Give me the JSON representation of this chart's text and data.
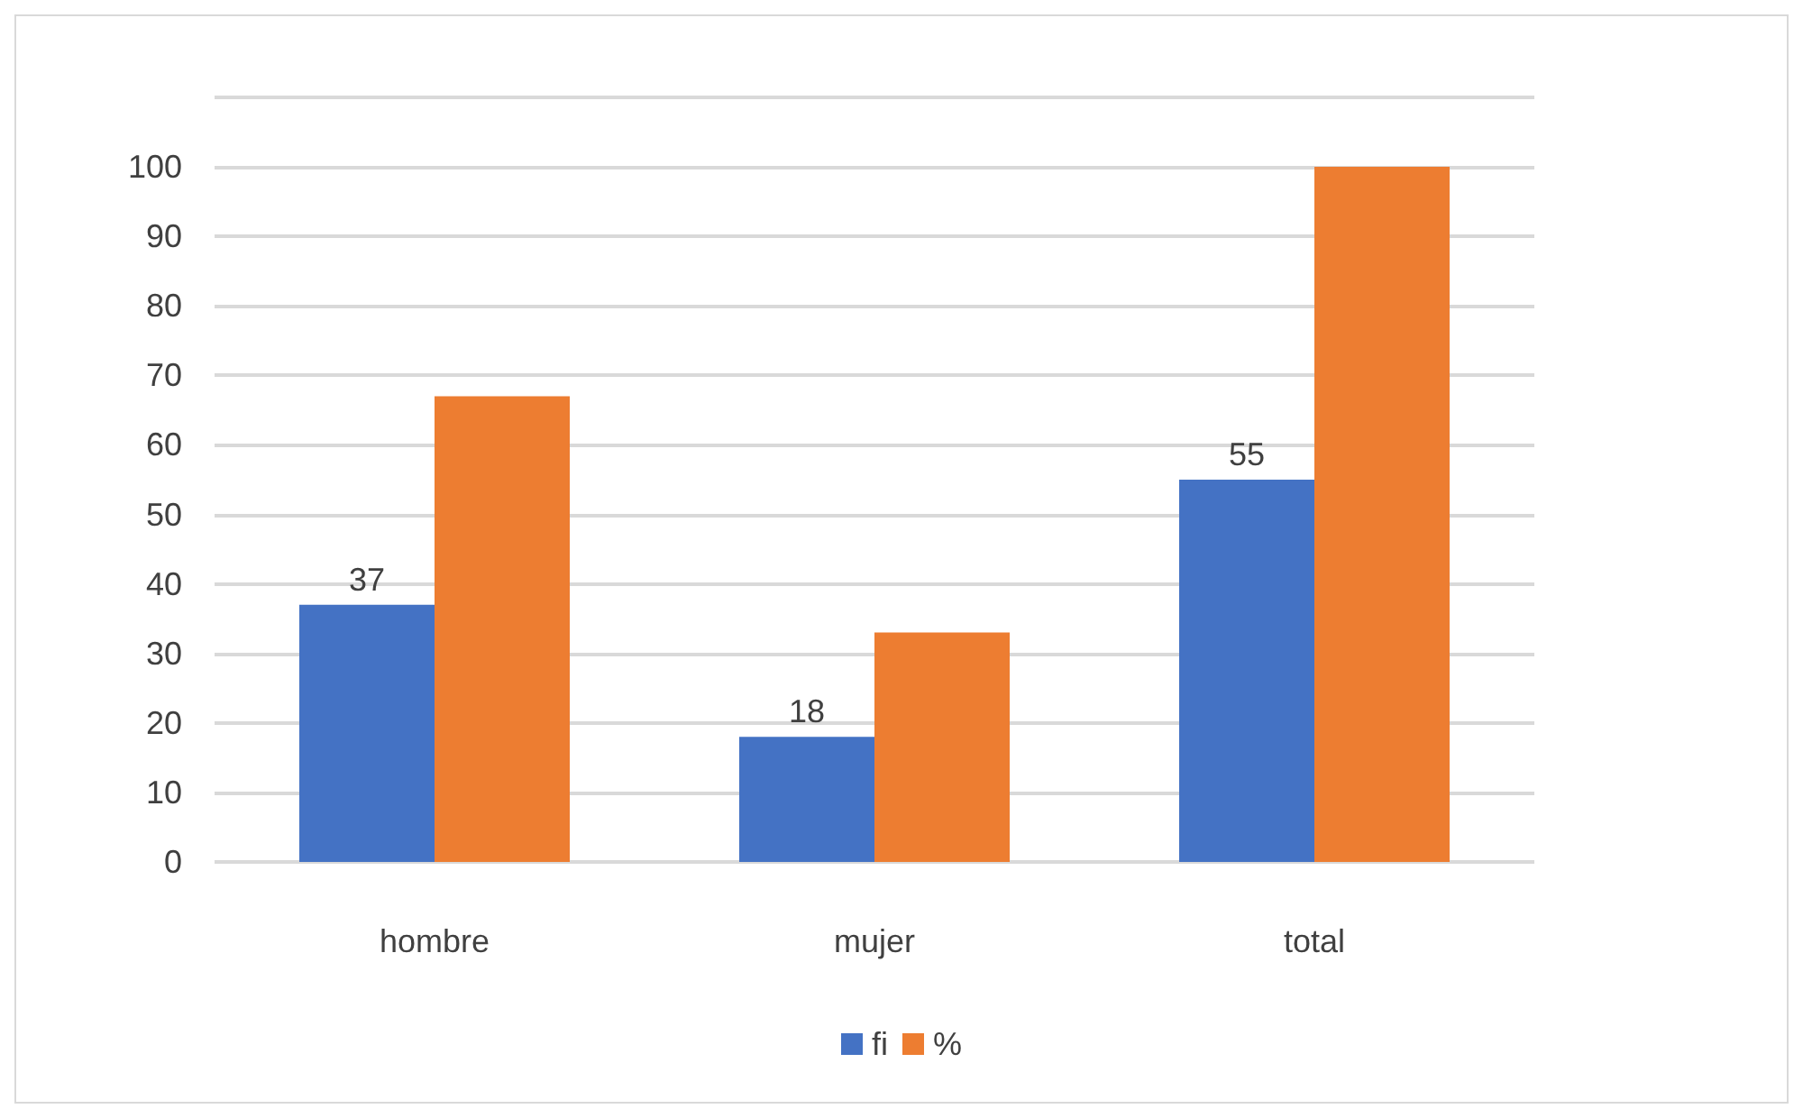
{
  "chart_data": {
    "type": "bar",
    "categories": [
      "hombre",
      "mujer",
      "total"
    ],
    "series": [
      {
        "name": "fi",
        "color": "#4472c4",
        "values": [
          37,
          18,
          55
        ],
        "value_labels": [
          "37",
          "18",
          "55"
        ]
      },
      {
        "name": "%",
        "color": "#ed7d31",
        "values": [
          67,
          33,
          100
        ]
      }
    ],
    "ylim": [
      0,
      110
    ],
    "yticks": [
      0,
      10,
      20,
      30,
      40,
      50,
      60,
      70,
      80,
      90,
      100,
      {
        "value": 110,
        "label": null
      }
    ],
    "grid": "y",
    "legend": "bottom"
  }
}
